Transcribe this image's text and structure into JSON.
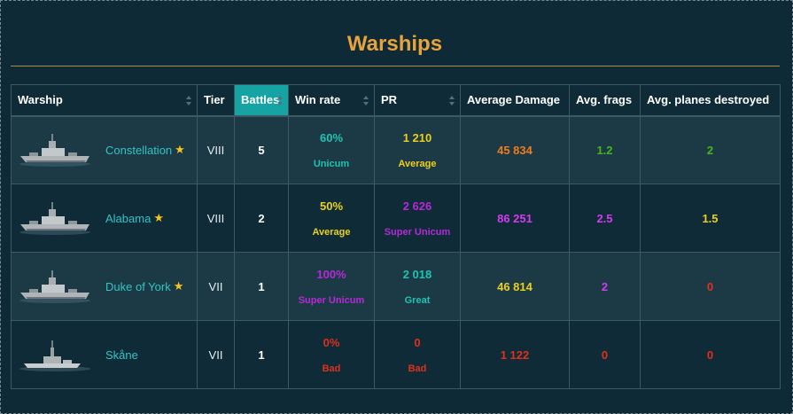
{
  "page": {
    "title": "Warships"
  },
  "columns": [
    {
      "label": "Warship",
      "active": false,
      "sortable": true
    },
    {
      "label": "Tier",
      "active": false,
      "sortable": false
    },
    {
      "label": "Battles",
      "active": true,
      "sortable": true
    },
    {
      "label": "Win rate",
      "active": false,
      "sortable": true
    },
    {
      "label": "PR",
      "active": false,
      "sortable": true
    },
    {
      "label": "Average Damage",
      "active": false,
      "sortable": false
    },
    {
      "label": "Avg. frags",
      "active": false,
      "sortable": false
    },
    {
      "label": "Avg. planes destroyed",
      "active": false,
      "sortable": false
    }
  ],
  "colors": {
    "unicum": "#1fc3b0",
    "great": "#1fc3b0",
    "average": "#ead01a",
    "super_unicum": "#b52ad6",
    "bad": "#e0301c",
    "damage_orange": "#ee7d1a",
    "green": "#46b51a",
    "purple": "#d43bef"
  },
  "rows": [
    {
      "name": "Constellation",
      "star": true,
      "tier": "VIII",
      "battles": "5",
      "winrate": "60%",
      "winrate_label": "Unicum",
      "winrate_color": "#1fc3b0",
      "pr": "1 210",
      "pr_label": "Average",
      "pr_color": "#ead01a",
      "damage": "45 834",
      "damage_color": "#ee7d1a",
      "frags": "1.2",
      "frags_color": "#46b51a",
      "planes": "2",
      "planes_color": "#46b51a"
    },
    {
      "name": "Alabama",
      "star": true,
      "tier": "VIII",
      "battles": "2",
      "winrate": "50%",
      "winrate_label": "Average",
      "winrate_color": "#ead01a",
      "pr": "2 626",
      "pr_label": "Super Unicum",
      "pr_color": "#b52ad6",
      "damage": "86 251",
      "damage_color": "#d43bef",
      "frags": "2.5",
      "frags_color": "#d43bef",
      "planes": "1.5",
      "planes_color": "#ead01a"
    },
    {
      "name": "Duke of York",
      "star": true,
      "tier": "VII",
      "battles": "1",
      "winrate": "100%",
      "winrate_label": "Super Unicum",
      "winrate_color": "#b52ad6",
      "pr": "2 018",
      "pr_label": "Great",
      "pr_color": "#1fc3b0",
      "damage": "46 814",
      "damage_color": "#ead01a",
      "frags": "2",
      "frags_color": "#d43bef",
      "planes": "0",
      "planes_color": "#e0301c"
    },
    {
      "name": "Skåne",
      "star": false,
      "tier": "VII",
      "battles": "1",
      "winrate": "0%",
      "winrate_label": "Bad",
      "winrate_color": "#e0301c",
      "pr": "0",
      "pr_label": "Bad",
      "pr_color": "#e0301c",
      "damage": "1 122",
      "damage_color": "#e0301c",
      "frags": "0",
      "frags_color": "#e0301c",
      "planes": "0",
      "planes_color": "#e0301c"
    }
  ]
}
